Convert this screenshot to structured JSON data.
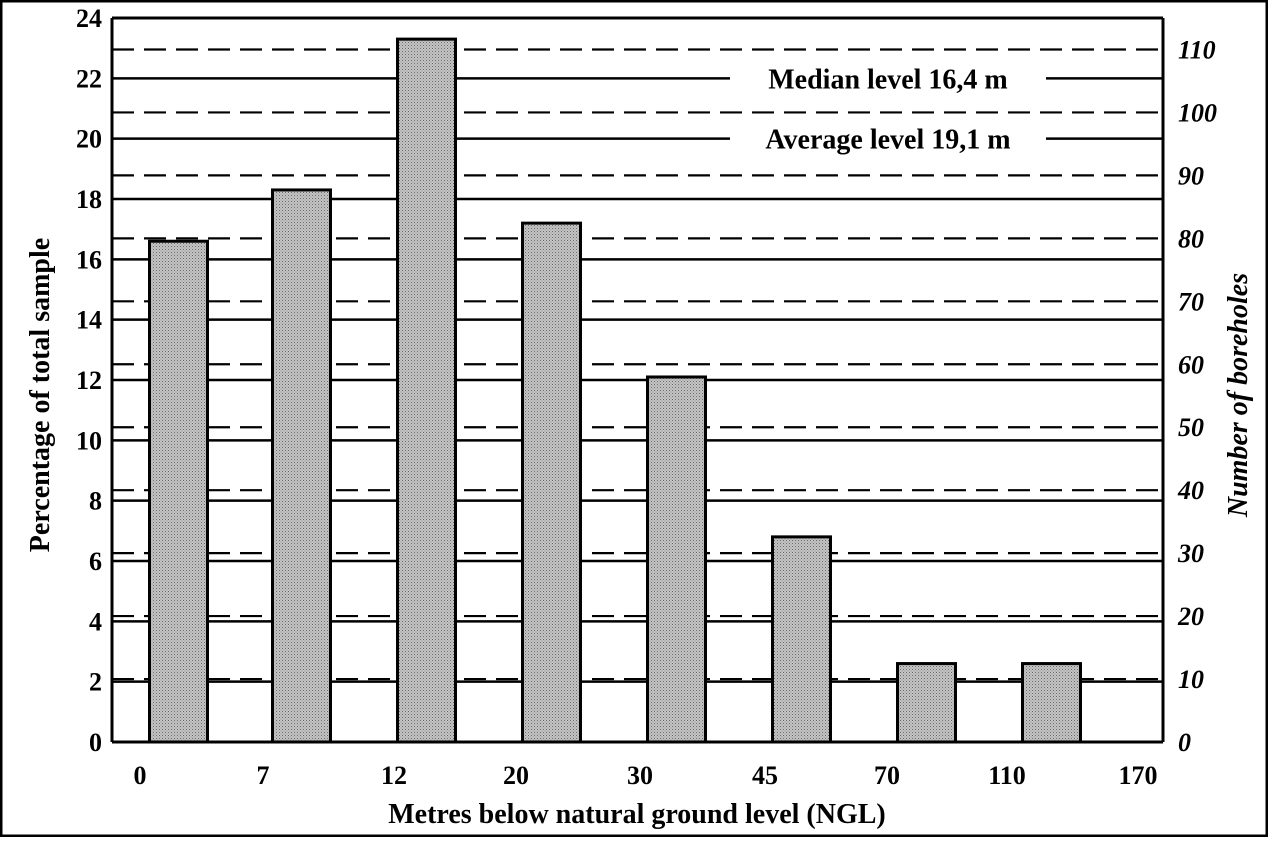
{
  "chart_data": {
    "type": "bar",
    "xlabel": "Metres below natural ground level (NGL)",
    "ylabel": "Percentage of total sample",
    "y2label": "Number of boreholes",
    "x_tick_labels": [
      "0",
      "7",
      "12",
      "20",
      "30",
      "45",
      "70",
      "110",
      "170"
    ],
    "categories": [
      "0–7",
      "7–12",
      "12–20",
      "20–30",
      "30–45",
      "45–70",
      "70–110",
      "110–170"
    ],
    "values": [
      16.6,
      18.3,
      23.3,
      17.2,
      12.1,
      6.8,
      2.6,
      2.6
    ],
    "ylim": [
      0,
      24
    ],
    "y_ticks": [
      0,
      2,
      4,
      6,
      8,
      10,
      12,
      14,
      16,
      18,
      20,
      22,
      24
    ],
    "y2lim": [
      0,
      115
    ],
    "y2_ticks": [
      0,
      10,
      20,
      30,
      40,
      50,
      60,
      70,
      80,
      90,
      100,
      110
    ],
    "annotations": [
      "Median level 16,4 m",
      "Average level 19,1 m"
    ],
    "grid": true,
    "bar_fill": "#bdbdbd",
    "line_color": "#000000"
  }
}
